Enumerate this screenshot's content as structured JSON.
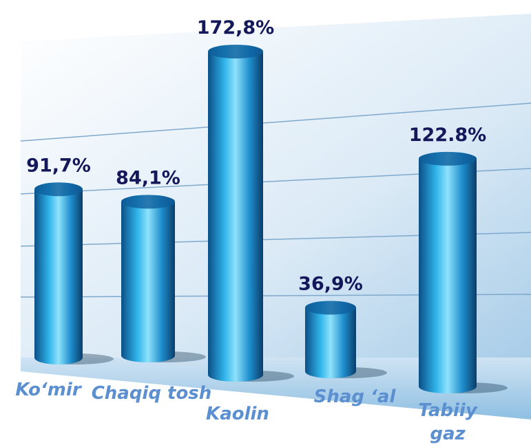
{
  "chart_data": {
    "type": "bar",
    "categories": [
      "Ko‘mir",
      "Chaqiq tosh",
      "Kaolin",
      "Shag ‘al",
      "Tabiiy gaz"
    ],
    "values": [
      91.7,
      84.1,
      172.8,
      36.9,
      122.8
    ],
    "value_labels": [
      "91,7%",
      "84,1%",
      "172,8%",
      "36,9%",
      "122.8%"
    ],
    "color": "#1a9ad6"
  }
}
